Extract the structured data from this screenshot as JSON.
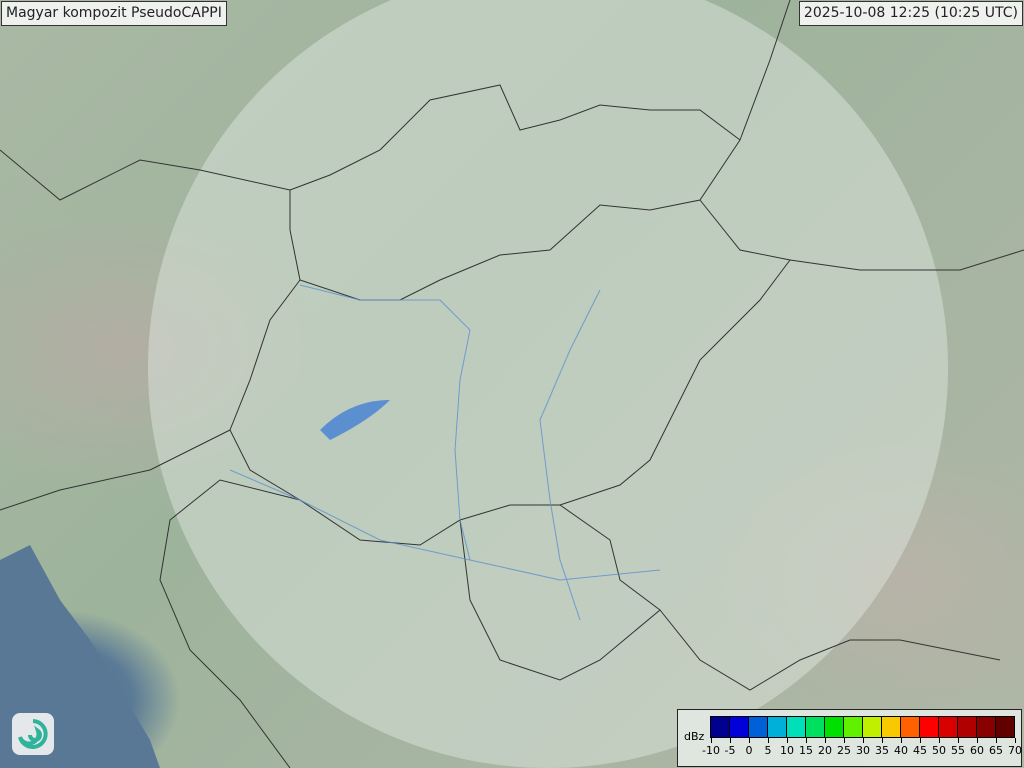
{
  "title": "Magyar kompozit  PseudoCAPPI",
  "timestamp": "2025-10-08 12:25 (10:25 UTC)",
  "map": {
    "type": "radar composite base map",
    "coverage_circle_color": "#dfe8e2",
    "sea_color": "#587895",
    "border_color": "#333333",
    "river_color": "#5b8fd0"
  },
  "legend": {
    "unit": "dBz",
    "ticks": [
      "-10",
      "-5",
      "0",
      "5",
      "10",
      "15",
      "20",
      "25",
      "30",
      "35",
      "40",
      "45",
      "50",
      "55",
      "60",
      "65",
      "70"
    ],
    "colors": [
      "#000090",
      "#0000d8",
      "#0060d8",
      "#00b0d8",
      "#00e0b8",
      "#00e060",
      "#00e000",
      "#60f000",
      "#c0f000",
      "#f8c800",
      "#ff6000",
      "#ff0000",
      "#d80000",
      "#b00000",
      "#880000",
      "#600000"
    ]
  },
  "logo": {
    "icon": "swirl-logo-icon"
  }
}
